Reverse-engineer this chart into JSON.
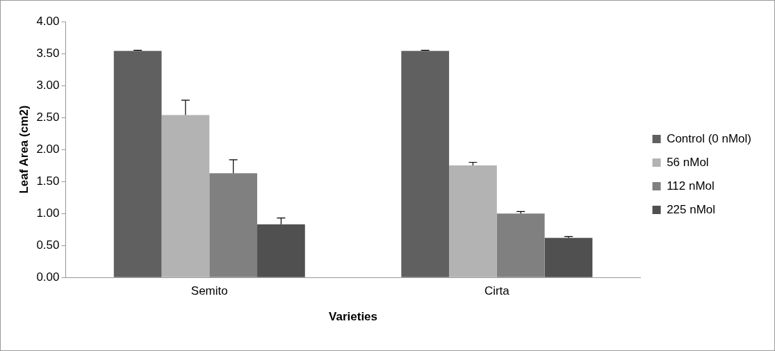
{
  "chart_data": {
    "type": "bar",
    "xlabel": "Varieties",
    "ylabel": "Leaf Area (cm2)",
    "categories": [
      "Semito",
      "Cirta"
    ],
    "series": [
      {
        "name": "Control (0 nMol)",
        "color": "#606060",
        "values": [
          3.54,
          3.54
        ],
        "errors": [
          [
            3.54,
            3.55
          ],
          [
            3.54,
            3.55
          ]
        ]
      },
      {
        "name": "56 nMol",
        "color": "#b3b3b3",
        "values": [
          2.54,
          1.75
        ],
        "errors": [
          [
            2.54,
            2.77
          ],
          [
            1.75,
            1.8
          ]
        ]
      },
      {
        "name": "112 nMol",
        "color": "#808080",
        "values": [
          1.63,
          1.0
        ],
        "errors": [
          [
            1.63,
            1.84
          ],
          [
            1.0,
            1.03
          ]
        ]
      },
      {
        "name": "225 nMol",
        "color": "#505050",
        "values": [
          0.83,
          0.62
        ],
        "errors": [
          [
            0.83,
            0.93
          ],
          [
            0.62,
            0.64
          ]
        ]
      }
    ],
    "ylim": [
      0,
      4
    ],
    "yticks": [
      {
        "value": 0,
        "label": "0.00"
      },
      {
        "value": 0.5,
        "label": "0.50"
      },
      {
        "value": 1,
        "label": "1.00"
      },
      {
        "value": 1.5,
        "label": "1.50"
      },
      {
        "value": 2,
        "label": "2.00"
      },
      {
        "value": 2.5,
        "label": "2.50"
      },
      {
        "value": 3,
        "label": "3.00"
      },
      {
        "value": 3.5,
        "label": "3.50"
      },
      {
        "value": 4,
        "label": "4.00"
      }
    ],
    "grid": false,
    "legend": "right"
  }
}
